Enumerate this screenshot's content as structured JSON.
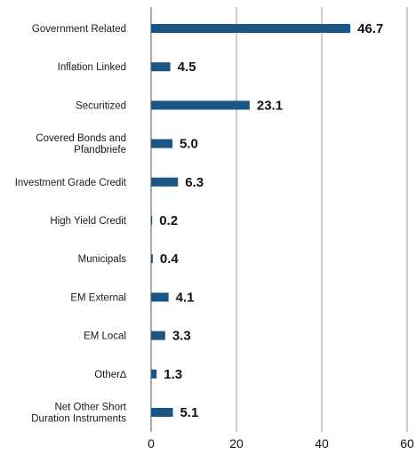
{
  "chart_data": {
    "type": "bar",
    "orientation": "horizontal",
    "categories": [
      [
        "Government Related"
      ],
      [
        "Inflation Linked"
      ],
      [
        "Securitized"
      ],
      [
        "Covered Bonds and",
        "Pfandbriefe"
      ],
      [
        "Investment Grade Credit"
      ],
      [
        "High Yield Credit"
      ],
      [
        "Municipals"
      ],
      [
        "EM External"
      ],
      [
        "EM Local"
      ],
      [
        "Other∆"
      ],
      [
        "Net Other Short",
        "Duration Instruments"
      ]
    ],
    "values": [
      46.7,
      4.5,
      23.1,
      5.0,
      6.3,
      0.2,
      0.4,
      4.1,
      3.3,
      1.3,
      5.1
    ],
    "value_labels": [
      "46.7",
      "4.5",
      "23.1",
      "5.0",
      "6.3",
      "0.2",
      "0.4",
      "4.1",
      "3.3",
      "1.3",
      "5.1"
    ],
    "xlim": [
      0,
      60
    ],
    "xticks": [
      "0",
      "20",
      "40",
      "60"
    ],
    "grid": "vertical",
    "colors": {
      "bar": "#1a5584"
    },
    "title": "",
    "xlabel": "",
    "ylabel": ""
  }
}
